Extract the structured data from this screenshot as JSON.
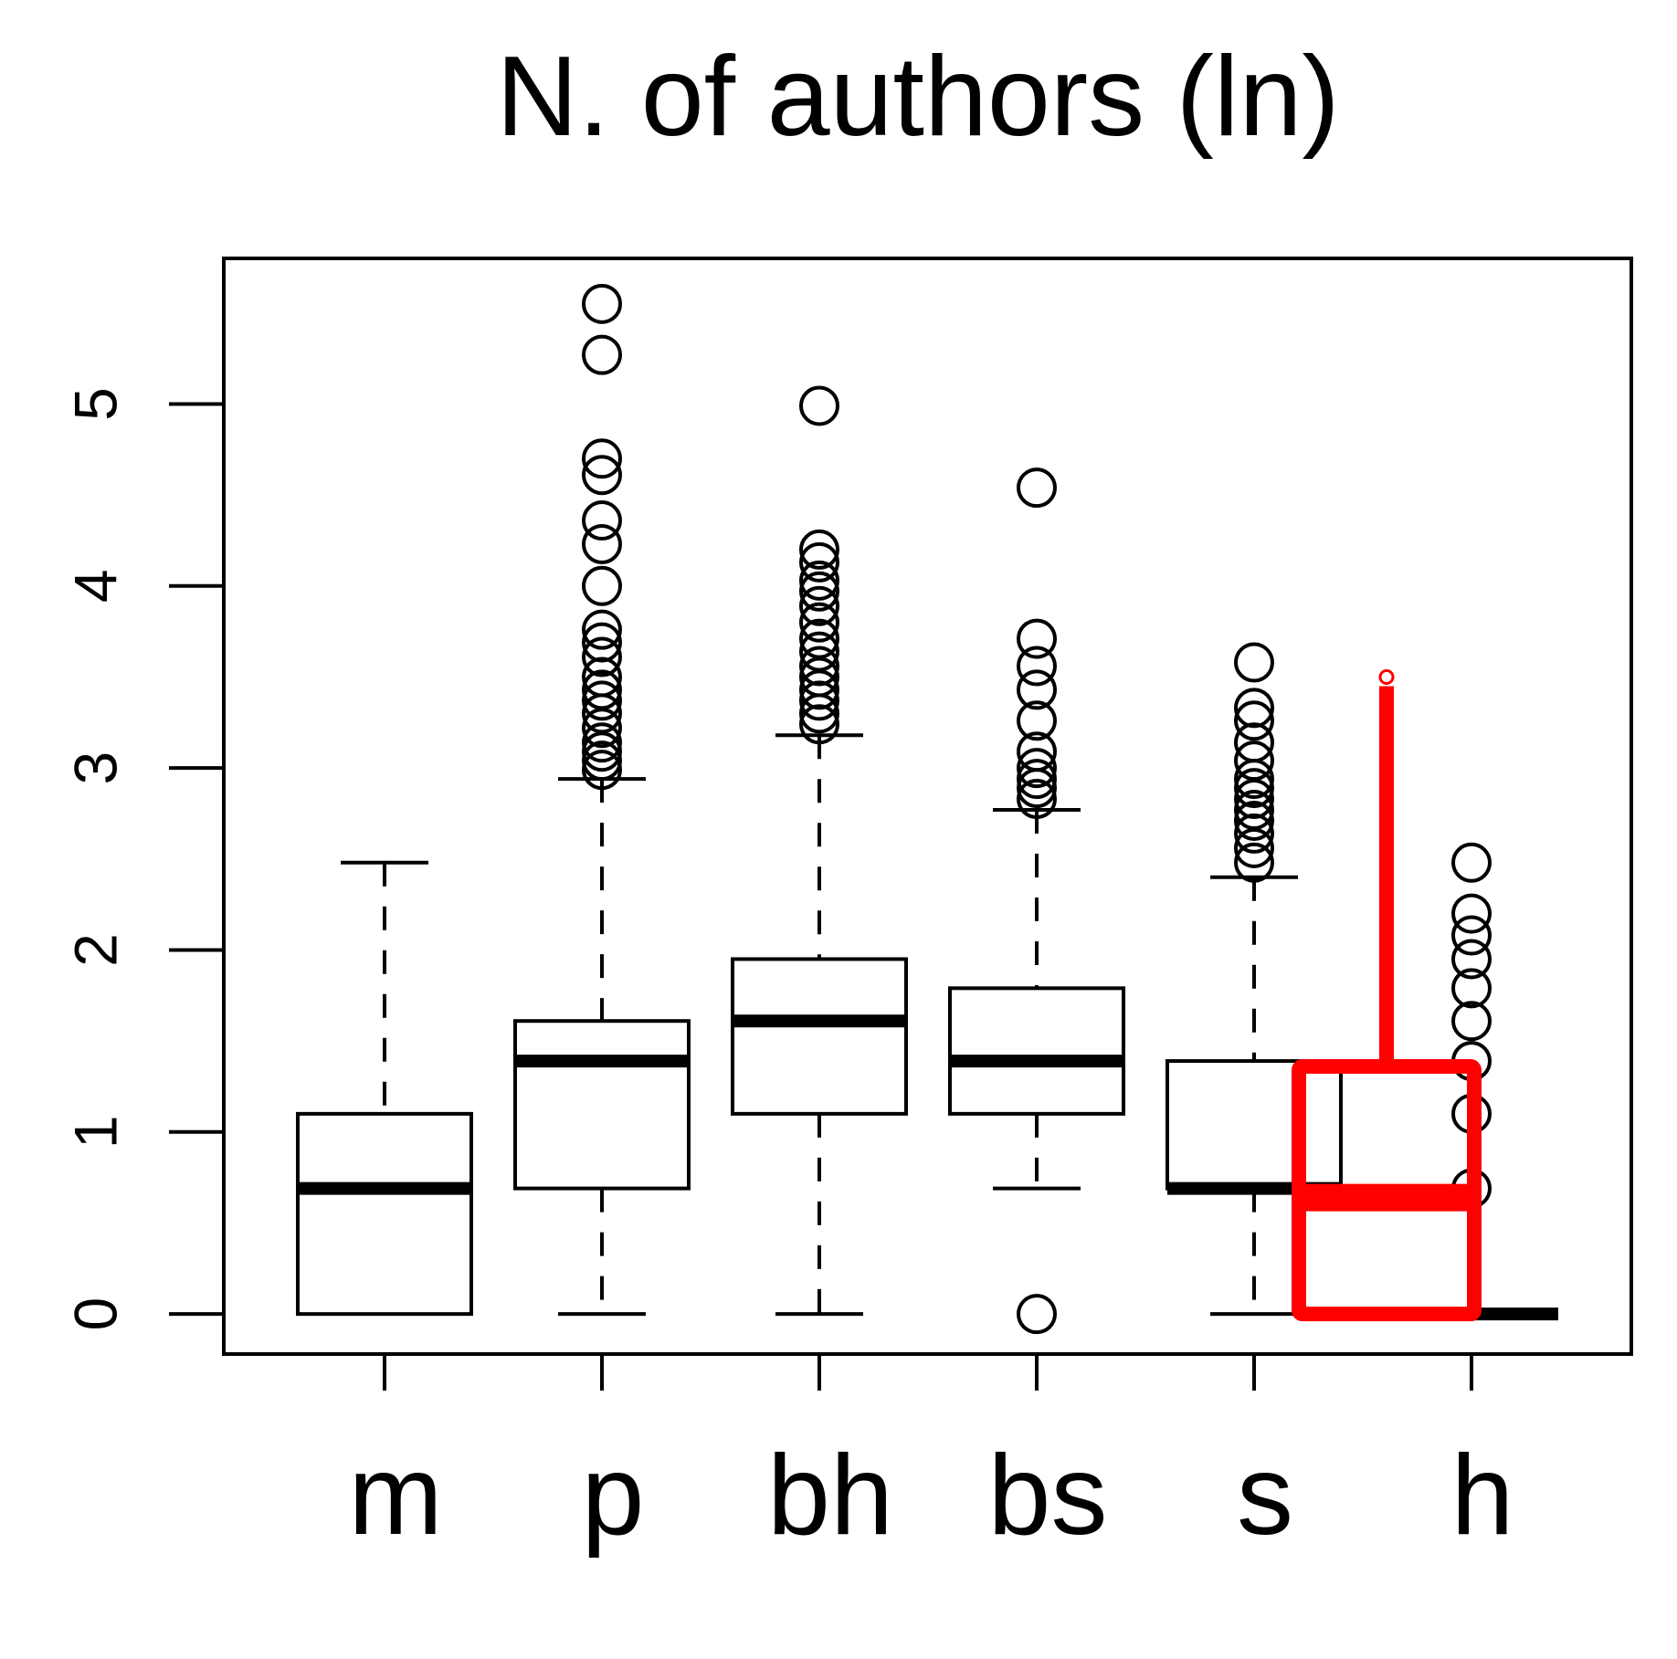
{
  "chart_data": {
    "type": "box",
    "title": "N. of authors (ln)",
    "xlabel": "",
    "ylabel": "",
    "ylim": [
      -0.22,
      5.8
    ],
    "yticks": [
      0,
      1,
      2,
      3,
      4,
      5
    ],
    "categories": [
      "m",
      "p",
      "bh",
      "bs",
      "s",
      "h"
    ],
    "boxes": [
      {
        "category": "m",
        "whisker_low": 0,
        "q1": 0,
        "median": 0.69,
        "q3": 1.1,
        "whisker_high": 2.48,
        "outliers": []
      },
      {
        "category": "p",
        "whisker_low": 0,
        "q1": 0.69,
        "median": 1.39,
        "q3": 1.61,
        "whisker_high": 2.94,
        "outliers": [
          5.55,
          5.27,
          4.7,
          4.61,
          4.36,
          4.23,
          4.0,
          3.76,
          3.69,
          3.61,
          3.5,
          3.43,
          3.37,
          3.3,
          3.22,
          3.14,
          3.09,
          3.04,
          2.99
        ]
      },
      {
        "category": "bh",
        "whisker_low": 0,
        "q1": 1.1,
        "median": 1.61,
        "q3": 1.95,
        "whisker_high": 3.18,
        "outliers": [
          4.99,
          4.2,
          4.13,
          4.03,
          3.97,
          3.89,
          3.8,
          3.71,
          3.64,
          3.56,
          3.5,
          3.43,
          3.37,
          3.3,
          3.24
        ]
      },
      {
        "category": "bs",
        "whisker_low": 0.69,
        "q1": 1.1,
        "median": 1.39,
        "q3": 1.79,
        "whisker_high": 2.77,
        "outliers": [
          4.54,
          3.71,
          3.56,
          3.43,
          3.26,
          3.09,
          3.0,
          2.94,
          2.89,
          2.83,
          0
        ]
      },
      {
        "category": "s",
        "whisker_low": 0,
        "q1": 0.69,
        "median": 0.69,
        "q3": 1.39,
        "whisker_high": 2.4,
        "outliers": [
          3.58,
          3.33,
          3.26,
          3.14,
          3.04,
          2.94,
          2.89,
          2.83,
          2.77,
          2.71,
          2.64,
          2.56,
          2.48
        ]
      },
      {
        "category": "h",
        "whisker_low": 0,
        "q1": 0,
        "median": 0,
        "q3": 0,
        "whisker_high": 0,
        "outliers": [
          2.48,
          2.2,
          2.08,
          1.95,
          1.79,
          1.61,
          1.39,
          1.1,
          0.69
        ]
      }
    ],
    "annotation_overlay": {
      "color": "#ff0000",
      "box": {
        "q1": 0,
        "median": 0.64,
        "q3": 1.36
      },
      "whisker_high": 3.45,
      "marker": 3.5
    },
    "grid": false,
    "legend": "none"
  }
}
